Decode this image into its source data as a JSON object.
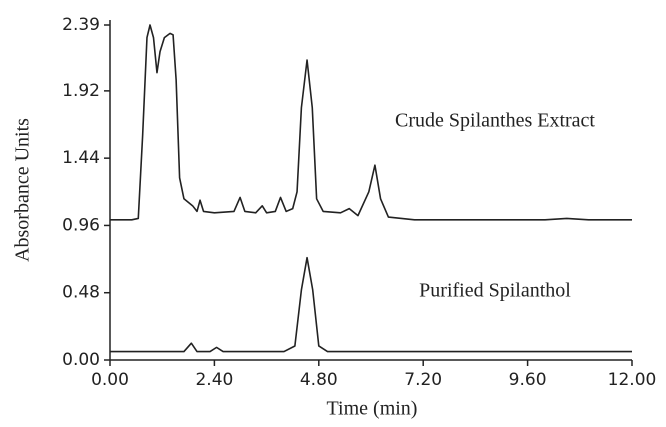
{
  "chart_data": {
    "type": "line",
    "xlabel": "Time (min)",
    "ylabel": "Absorbance Units",
    "xlim": [
      0,
      12
    ],
    "ylim": [
      0,
      2.39
    ],
    "xticks": [
      {
        "value": 0,
        "label": "0.00"
      },
      {
        "value": 2.4,
        "label": "2.40"
      },
      {
        "value": 4.8,
        "label": "4.80"
      },
      {
        "value": 7.2,
        "label": "7.20"
      },
      {
        "value": 9.6,
        "label": "9.60"
      },
      {
        "value": 12,
        "label": "12.00"
      }
    ],
    "yticks": [
      {
        "value": 0,
        "label": "0.00"
      },
      0.48,
      0.96,
      1.44,
      1.92,
      2.39
    ],
    "series": [
      {
        "name": "Crude Spilanthes Extract",
        "color": "#222222",
        "x": [
          0,
          0.5,
          0.65,
          0.75,
          0.85,
          0.92,
          1.0,
          1.08,
          1.15,
          1.25,
          1.38,
          1.45,
          1.52,
          1.6,
          1.7,
          1.9,
          2.0,
          2.07,
          2.15,
          2.4,
          2.85,
          2.99,
          3.1,
          3.35,
          3.5,
          3.6,
          3.8,
          3.92,
          4.05,
          4.2,
          4.3,
          4.4,
          4.53,
          4.65,
          4.75,
          4.9,
          5.3,
          5.5,
          5.7,
          5.95,
          6.09,
          6.22,
          6.4,
          7.0,
          8.0,
          9.0,
          10.0,
          10.5,
          11.0,
          12.0
        ],
        "values": [
          1.0,
          1.0,
          1.01,
          1.6,
          2.3,
          2.39,
          2.3,
          2.05,
          2.2,
          2.3,
          2.33,
          2.32,
          2.0,
          1.3,
          1.15,
          1.1,
          1.06,
          1.14,
          1.06,
          1.05,
          1.06,
          1.16,
          1.06,
          1.05,
          1.1,
          1.05,
          1.06,
          1.16,
          1.06,
          1.08,
          1.2,
          1.8,
          2.14,
          1.8,
          1.15,
          1.06,
          1.05,
          1.08,
          1.03,
          1.2,
          1.39,
          1.15,
          1.02,
          1.0,
          1.0,
          1.0,
          1.0,
          1.01,
          1.0,
          1.0
        ]
      },
      {
        "name": "Purified Spilanthol",
        "color": "#222222",
        "x": [
          0,
          1.0,
          1.7,
          1.87,
          2.0,
          2.3,
          2.45,
          2.6,
          3.0,
          4.0,
          4.25,
          4.4,
          4.53,
          4.66,
          4.8,
          5.0,
          6.0,
          8.0,
          10.0,
          12.0
        ],
        "values": [
          0.06,
          0.06,
          0.06,
          0.12,
          0.06,
          0.06,
          0.09,
          0.06,
          0.06,
          0.06,
          0.1,
          0.5,
          0.73,
          0.5,
          0.1,
          0.06,
          0.06,
          0.06,
          0.06,
          0.06
        ]
      }
    ]
  }
}
